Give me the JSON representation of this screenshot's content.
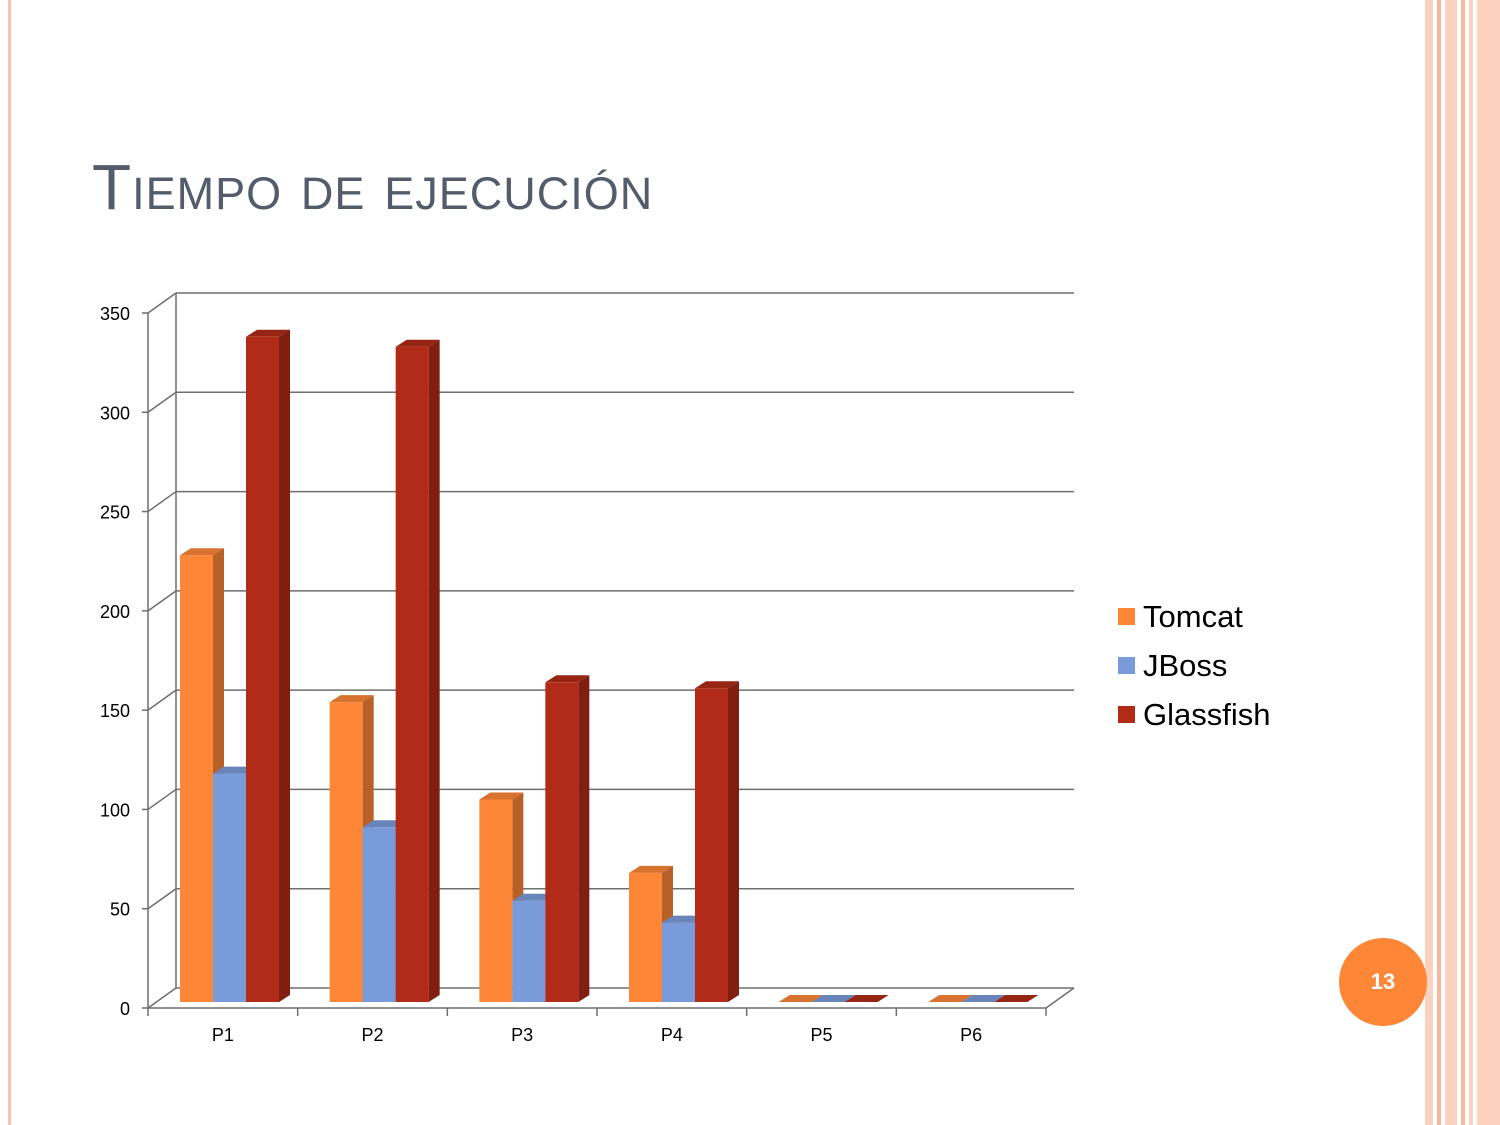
{
  "slide": {
    "title": "Tiempo de ejecución",
    "page_number": "13"
  },
  "colors": {
    "title": "#535c6a",
    "accent": "#fe8637",
    "stripe_light": "#fbd2c0",
    "stripe_mid": "#f7b79a",
    "grid": "#6e6e6e"
  },
  "chart_data": {
    "type": "bar",
    "title": "",
    "xlabel": "",
    "ylabel": "",
    "ylim": [
      0,
      350
    ],
    "yticks": [
      "0",
      "50",
      "100",
      "150",
      "200",
      "250",
      "300",
      "350"
    ],
    "categories": [
      "P1",
      "P2",
      "P3",
      "P4",
      "P5",
      "P6"
    ],
    "series": [
      {
        "name": "Tomcat",
        "color": "#fe8637",
        "values": [
          225,
          151,
          102,
          65,
          0,
          0
        ]
      },
      {
        "name": "JBoss",
        "color": "#7a9bd9",
        "values": [
          115,
          88,
          51,
          40,
          0,
          0
        ]
      },
      {
        "name": "Glassfish",
        "color": "#b22b18",
        "values": [
          335,
          330,
          161,
          158,
          0,
          0
        ]
      }
    ],
    "grid": true,
    "legend": "right",
    "style": "3d-clustered-column"
  }
}
